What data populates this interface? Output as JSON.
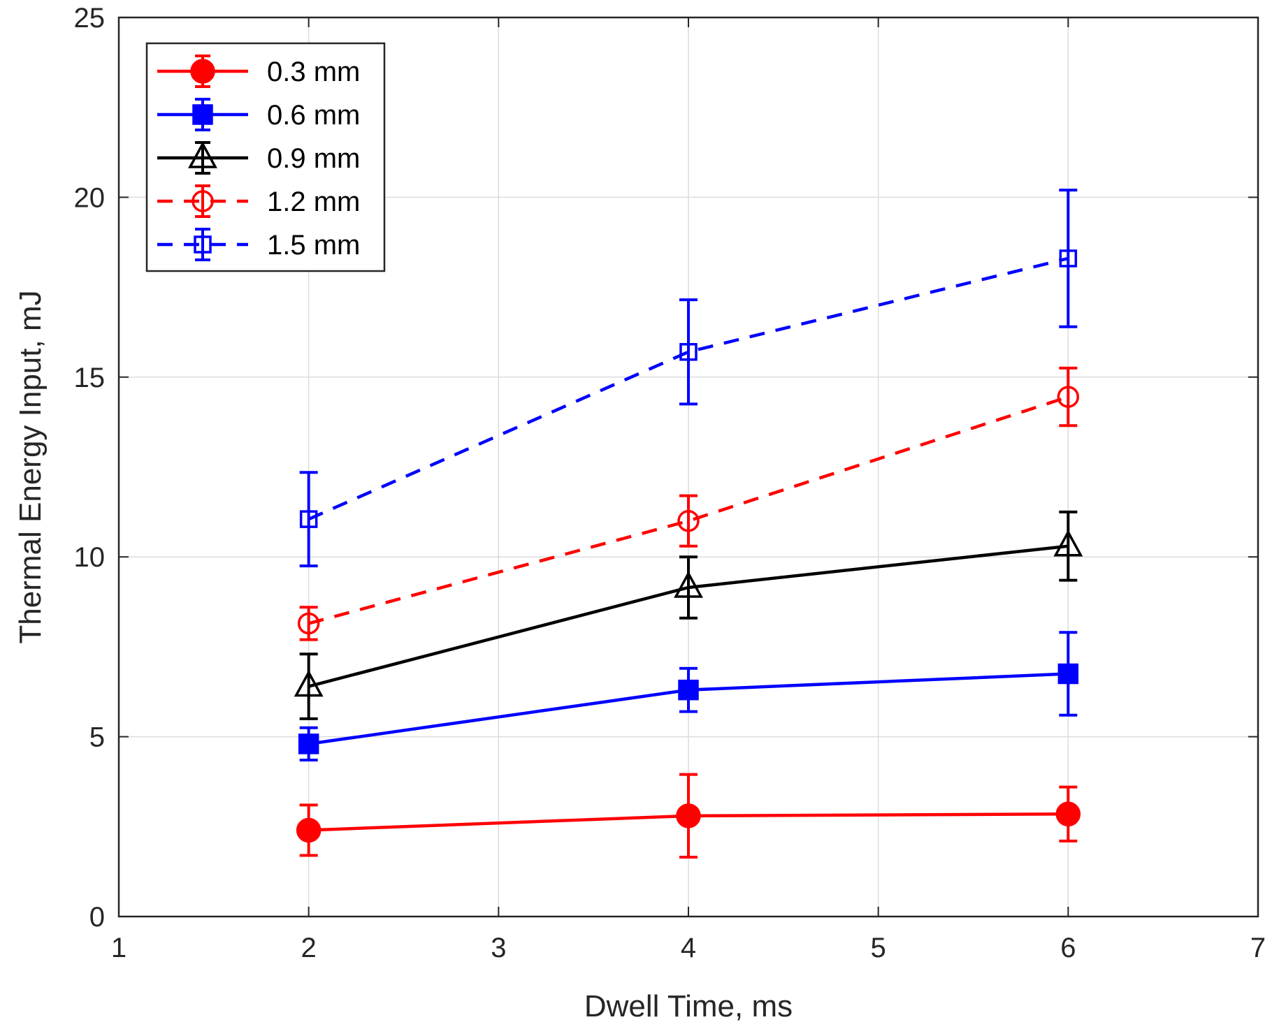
{
  "chart_data": {
    "type": "line",
    "title": "",
    "xlabel": "Dwell Time, ms",
    "ylabel": "Thermal Energy Input, mJ",
    "xlim": [
      1,
      7
    ],
    "ylim": [
      0,
      25
    ],
    "xticks": [
      1,
      2,
      3,
      4,
      5,
      6,
      7
    ],
    "yticks": [
      0,
      5,
      10,
      15,
      20,
      25
    ],
    "grid": true,
    "legend_position": "top-left",
    "x": [
      2,
      4,
      6
    ],
    "series": [
      {
        "name": "0.3 mm",
        "color": "#ff0000",
        "dash": "solid",
        "marker": "circle-filled",
        "values": [
          2.4,
          2.8,
          2.85
        ],
        "errors": [
          0.7,
          1.15,
          0.75
        ]
      },
      {
        "name": "0.6 mm",
        "color": "#0000ff",
        "dash": "solid",
        "marker": "square-filled",
        "values": [
          4.8,
          6.3,
          6.75
        ],
        "errors": [
          0.45,
          0.6,
          1.15
        ]
      },
      {
        "name": "0.9 mm",
        "color": "#000000",
        "dash": "solid",
        "marker": "triangle-open",
        "values": [
          6.4,
          9.15,
          10.3
        ],
        "errors": [
          0.9,
          0.85,
          0.95
        ]
      },
      {
        "name": "1.2 mm",
        "color": "#ff0000",
        "dash": "dashed",
        "marker": "circle-open",
        "values": [
          8.15,
          11.0,
          14.45
        ],
        "errors": [
          0.45,
          0.7,
          0.8
        ]
      },
      {
        "name": "1.5 mm",
        "color": "#0000ff",
        "dash": "dashed",
        "marker": "square-open",
        "values": [
          11.05,
          15.7,
          18.3
        ],
        "errors": [
          1.3,
          1.45,
          1.9
        ]
      }
    ]
  }
}
